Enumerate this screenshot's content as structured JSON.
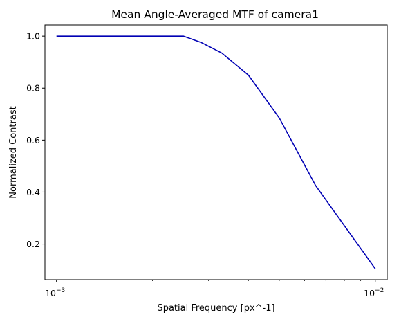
{
  "chart_data": {
    "type": "line",
    "title": "Mean Angle-Averaged MTF of camera1",
    "xlabel": "Spatial Frequency [px^-1]",
    "ylabel": "Normalized Contrast",
    "xscale": "log",
    "xlim": [
      0.00092,
      0.0109
    ],
    "ylim": [
      0.063,
      1.043
    ],
    "x_ticks": [
      {
        "value": 0.001,
        "base": "10",
        "exp": "−3"
      },
      {
        "value": 0.01,
        "base": "10",
        "exp": "−2"
      }
    ],
    "y_ticks": [
      {
        "value": 0.2,
        "label": "0.2"
      },
      {
        "value": 0.4,
        "label": "0.4"
      },
      {
        "value": 0.6,
        "label": "0.6"
      },
      {
        "value": 0.8,
        "label": "0.8"
      },
      {
        "value": 1.0,
        "label": "1.0"
      }
    ],
    "grid": false,
    "series": [
      {
        "color": "#0000b4",
        "x": [
          0.001,
          0.0025,
          0.00285,
          0.0033,
          0.004,
          0.005,
          0.0065,
          0.01
        ],
        "y": [
          1.0,
          1.0,
          0.975,
          0.935,
          0.85,
          0.685,
          0.425,
          0.105
        ]
      }
    ]
  }
}
